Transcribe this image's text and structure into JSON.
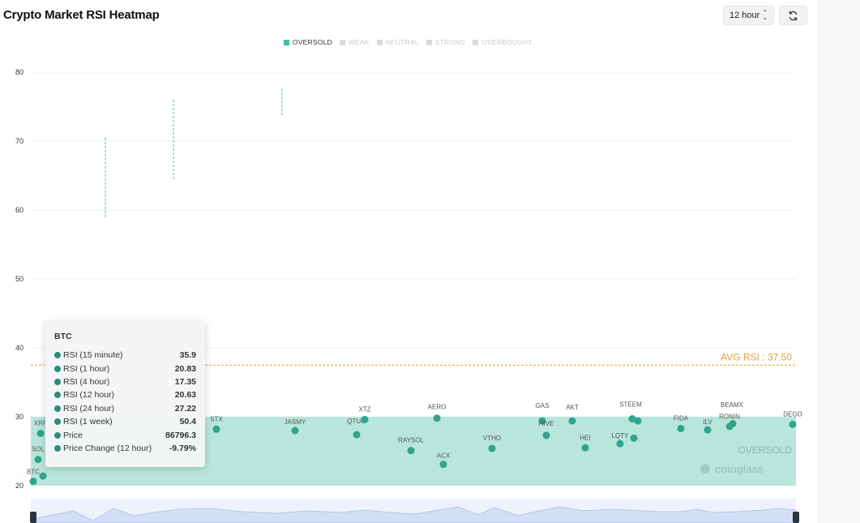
{
  "title": "Crypto Market RSI Heatmap",
  "controls": {
    "period": "12 hour"
  },
  "legend": [
    {
      "label": "OVERSOLD",
      "active": true
    },
    {
      "label": "WEAK",
      "active": false
    },
    {
      "label": "NEUTRAL",
      "active": false
    },
    {
      "label": "STRONG",
      "active": false
    },
    {
      "label": "OVERBOUGHT",
      "active": false
    }
  ],
  "chart_data": {
    "type": "scatter",
    "ylim": [
      20,
      80
    ],
    "yticks": [
      20,
      30,
      40,
      50,
      60,
      70,
      80
    ],
    "grid": true,
    "oversold_band": [
      20,
      30
    ],
    "oversold_label": "OVERSOLD",
    "avg_rsi": 37.5,
    "avg_rsi_label": "AVG RSI : 37.50",
    "watermark": "coinglass",
    "band_color": "#b5e5d8",
    "point_color": "#2ea58c",
    "avg_line_color": "#e0a040",
    "points": [
      {
        "label": "BTC",
        "rsi": 20.63
      },
      {
        "label": "",
        "rsi": 21.4
      },
      {
        "label": "SOL",
        "rsi": 23.8
      },
      {
        "label": "XRP",
        "rsi": 27.6
      },
      {
        "label": "STX",
        "rsi": 28.2
      },
      {
        "label": "JASMY",
        "rsi": 28.0
      },
      {
        "label": "QTUM",
        "rsi": 27.4
      },
      {
        "label": "XTZ",
        "rsi": 29.6
      },
      {
        "label": "RAYSOL",
        "rsi": 25.1
      },
      {
        "label": "AERO",
        "rsi": 29.8
      },
      {
        "label": "ACX",
        "rsi": 23.1
      },
      {
        "label": "VTHO",
        "rsi": 25.4
      },
      {
        "label": "GAS",
        "rsi": 29.4
      },
      {
        "label": "HIVE",
        "rsi": 27.3
      },
      {
        "label": "AKT",
        "rsi": 29.4
      },
      {
        "label": "HEI",
        "rsi": 25.5
      },
      {
        "label": "LQTY",
        "rsi": 26.1
      },
      {
        "label": "STEEM",
        "rsi": 29.7
      },
      {
        "label": "",
        "rsi": 26.9
      },
      {
        "label": "",
        "rsi": 29.4
      },
      {
        "label": "FIDA",
        "rsi": 28.3
      },
      {
        "label": "ILV",
        "rsi": 28.1
      },
      {
        "label": "BEAMX",
        "rsi": 28.6
      },
      {
        "label": "RONIN",
        "rsi": 29.0
      },
      {
        "label": "DEGO",
        "rsi": 28.9
      }
    ],
    "range_bars": [
      {
        "low": 59,
        "high": 70.5
      },
      {
        "low": 64.5,
        "high": 76
      },
      {
        "low": 73.7,
        "high": 77.6
      }
    ]
  },
  "tooltip": {
    "title": "BTC",
    "rows": [
      {
        "label": "RSI (15 minute)",
        "value": "35.9"
      },
      {
        "label": "RSI (1 hour)",
        "value": "20.83"
      },
      {
        "label": "RSI (4 hour)",
        "value": "17.35"
      },
      {
        "label": "RSI (12 hour)",
        "value": "20.63"
      },
      {
        "label": "RSI (24 hour)",
        "value": "27.22"
      },
      {
        "label": "RSI (1 week)",
        "value": "50.4"
      },
      {
        "label": "Price",
        "value": "86796.3"
      },
      {
        "label": "Price Change (12 hour)",
        "value": "-9.79%"
      }
    ]
  }
}
